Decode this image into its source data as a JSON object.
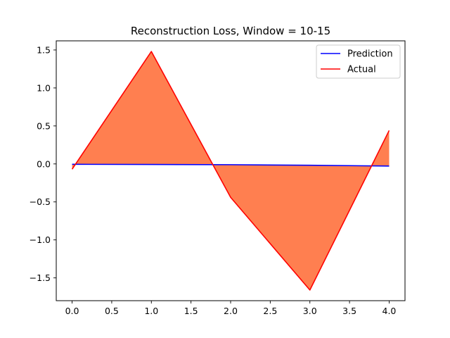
{
  "chart_data": {
    "type": "line",
    "title": "Reconstruction Loss, Window = 10-15",
    "xlabel": "",
    "ylabel": "",
    "x": [
      0,
      1,
      2,
      3,
      4
    ],
    "series": [
      {
        "name": "Prediction",
        "color": "#0000ff",
        "values": [
          -0.005,
          -0.007,
          -0.01,
          -0.018,
          -0.028
        ]
      },
      {
        "name": "Actual",
        "color": "#ff0000",
        "values": [
          -0.07,
          1.48,
          -0.44,
          -1.66,
          0.44
        ]
      }
    ],
    "fill_between": {
      "color": "#ff7f50",
      "between": [
        "Prediction",
        "Actual"
      ]
    },
    "xlim": [
      -0.2,
      4.2
    ],
    "ylim": [
      -1.8,
      1.62
    ],
    "xticks": [
      0.0,
      0.5,
      1.0,
      1.5,
      2.0,
      2.5,
      3.0,
      3.5,
      4.0
    ],
    "xtick_labels": [
      "0.0",
      "0.5",
      "1.0",
      "1.5",
      "2.0",
      "2.5",
      "3.0",
      "3.5",
      "4.0"
    ],
    "yticks": [
      -1.5,
      -1.0,
      -0.5,
      0.0,
      0.5,
      1.0,
      1.5
    ],
    "ytick_labels": [
      "−1.5",
      "−1.0",
      "−0.5",
      "0.0",
      "0.5",
      "1.0",
      "1.5"
    ],
    "grid": false,
    "legend": {
      "position": "top-right",
      "entries": [
        "Prediction",
        "Actual"
      ]
    }
  }
}
